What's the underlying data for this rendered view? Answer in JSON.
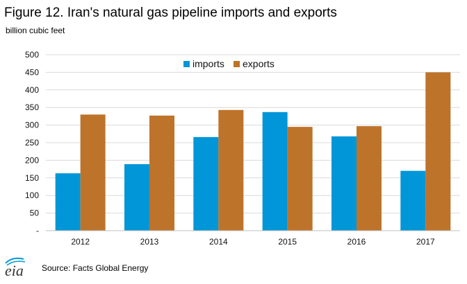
{
  "title": "Figure 12. Iran's natural gas pipeline imports and exports",
  "unit_label": "billion cubic feet",
  "source": "Source: Facts Global Energy",
  "logo_text": "eia",
  "colors": {
    "imports": "#0096d7",
    "exports": "#bd732a",
    "grid": "#d9d9d9",
    "axis": "#bfbfbf"
  },
  "chart_data": {
    "type": "bar",
    "categories": [
      "2012",
      "2013",
      "2014",
      "2015",
      "2016",
      "2017"
    ],
    "series": [
      {
        "name": "imports",
        "values": [
          163,
          189,
          266,
          337,
          268,
          170
        ]
      },
      {
        "name": "exports",
        "values": [
          330,
          327,
          343,
          295,
          297,
          450
        ]
      }
    ],
    "ylim": [
      0,
      500
    ],
    "yticks": [
      "-",
      "50",
      "100",
      "150",
      "200",
      "250",
      "300",
      "350",
      "400",
      "450",
      "500"
    ],
    "grid": true,
    "legend_position": "top-center"
  }
}
